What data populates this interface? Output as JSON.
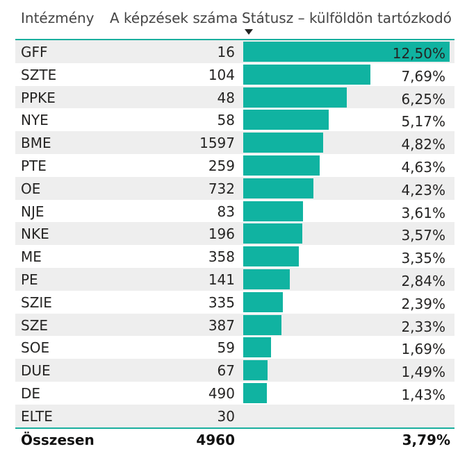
{
  "header": {
    "institution": "Intézmény",
    "trainings": "A képzések száma",
    "status": "Státusz – külföldön tartózkodó"
  },
  "accent_color": "#10b3a1",
  "rows": [
    {
      "inst": "GFF",
      "count": "16",
      "pct": "12,50%",
      "value": 12.5
    },
    {
      "inst": "SZTE",
      "count": "104",
      "pct": "7,69%",
      "value": 7.69
    },
    {
      "inst": "PPKE",
      "count": "48",
      "pct": "6,25%",
      "value": 6.25
    },
    {
      "inst": "NYE",
      "count": "58",
      "pct": "5,17%",
      "value": 5.17
    },
    {
      "inst": "BME",
      "count": "1597",
      "pct": "4,82%",
      "value": 4.82
    },
    {
      "inst": "PTE",
      "count": "259",
      "pct": "4,63%",
      "value": 4.63
    },
    {
      "inst": "OE",
      "count": "732",
      "pct": "4,23%",
      "value": 4.23
    },
    {
      "inst": "NJE",
      "count": "83",
      "pct": "3,61%",
      "value": 3.61
    },
    {
      "inst": "NKE",
      "count": "196",
      "pct": "3,57%",
      "value": 3.57
    },
    {
      "inst": "ME",
      "count": "358",
      "pct": "3,35%",
      "value": 3.35
    },
    {
      "inst": "PE",
      "count": "141",
      "pct": "2,84%",
      "value": 2.84
    },
    {
      "inst": "SZIE",
      "count": "335",
      "pct": "2,39%",
      "value": 2.39
    },
    {
      "inst": "SZE",
      "count": "387",
      "pct": "2,33%",
      "value": 2.33
    },
    {
      "inst": "SOE",
      "count": "59",
      "pct": "1,69%",
      "value": 1.69
    },
    {
      "inst": "DUE",
      "count": "67",
      "pct": "1,49%",
      "value": 1.49
    },
    {
      "inst": "DE",
      "count": "490",
      "pct": "1,43%",
      "value": 1.43
    },
    {
      "inst": "ELTE",
      "count": "30",
      "pct": "",
      "value": 0
    }
  ],
  "total": {
    "label": "Összesen",
    "count": "4960",
    "pct": "3,79%"
  }
}
